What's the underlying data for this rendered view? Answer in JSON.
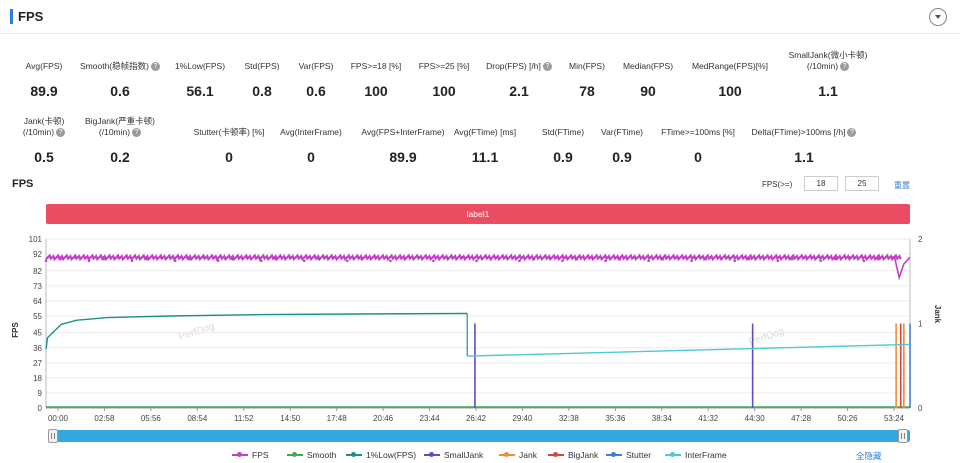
{
  "header": {
    "title": "FPS"
  },
  "metrics_row1": [
    {
      "label": "Avg(FPS)",
      "value": "89.9",
      "help": false
    },
    {
      "label": "Smooth(稳帧指数)",
      "value": "0.6",
      "help": true
    },
    {
      "label": "1%Low(FPS)",
      "value": "56.1",
      "help": false
    },
    {
      "label": "Std(FPS)",
      "value": "0.8",
      "help": false
    },
    {
      "label": "Var(FPS)",
      "value": "0.6",
      "help": false
    },
    {
      "label": "FPS>=18 [%]",
      "value": "100",
      "help": false
    },
    {
      "label": "FPS>=25 [%]",
      "value": "100",
      "help": false
    },
    {
      "label": "Drop(FPS) [/h]",
      "value": "2.1",
      "help": true
    },
    {
      "label": "Min(FPS)",
      "value": "78",
      "help": false
    },
    {
      "label": "Median(FPS)",
      "value": "90",
      "help": false
    },
    {
      "label": "MedRange(FPS)[%]",
      "value": "100",
      "help": false
    },
    {
      "label": "SmallJank(微小卡顿)",
      "label2": "(/10min)",
      "value": "1.1",
      "help": true
    }
  ],
  "metrics_row2": [
    {
      "label": "Jank(卡顿)",
      "label2": "(/10min)",
      "value": "0.5",
      "help": true
    },
    {
      "label": "BigJank(严重卡顿)",
      "label2": "(/10min)",
      "value": "0.2",
      "help": true
    },
    {
      "label": "Stutter(卡顿率) [%]",
      "value": "0",
      "help": false
    },
    {
      "label": "Avg(InterFrame)",
      "value": "0",
      "help": false
    },
    {
      "label": "Avg(FPS+InterFrame)",
      "value": "89.9",
      "help": false
    },
    {
      "label": "Avg(FTime) [ms]",
      "value": "11.1",
      "help": false
    },
    {
      "label": "Std(FTime)",
      "value": "0.9",
      "help": false
    },
    {
      "label": "Var(FTime)",
      "value": "0.9",
      "help": false
    },
    {
      "label": "FTime>=100ms [%]",
      "value": "0",
      "help": false
    },
    {
      "label": "Delta(FTime)>100ms [/h]",
      "value": "1.1",
      "help": true
    }
  ],
  "chart_section": {
    "title": "FPS",
    "fps_setting_label": "FPS(>=)",
    "fps_threshold_1": "18",
    "fps_threshold_2": "25",
    "reset_label": "重置",
    "band_label": "label1",
    "hide_all_label": "全隐藏"
  },
  "watermark": "PerfDog",
  "help_glyph": "?",
  "chart_data": {
    "type": "line",
    "xlabel": "",
    "ylabel": "FPS",
    "y2label": "Jank",
    "ylim": [
      0,
      101
    ],
    "y2lim": [
      0,
      2
    ],
    "yticks": [
      0,
      9,
      18,
      27,
      36,
      45,
      55,
      64,
      73,
      82,
      92,
      101
    ],
    "y2ticks": [
      0,
      1,
      2
    ],
    "x_minutes_max": 56,
    "xticks": [
      "00:00",
      "02:58",
      "05:56",
      "08:54",
      "11:52",
      "14:50",
      "17:48",
      "20:46",
      "23:44",
      "26:42",
      "29:40",
      "32:38",
      "35:36",
      "38:34",
      "41:32",
      "44:30",
      "47:28",
      "50:26",
      "53:24"
    ],
    "series": [
      {
        "name": "FPS",
        "color": "#c23fc6",
        "axis": "left",
        "values_summary": "steady ~90 throughout, dip to 78 near end",
        "x": [
          0,
          27,
          55,
          55.3,
          55.6,
          56
        ],
        "y": [
          90,
          90,
          90,
          78,
          86,
          90
        ]
      },
      {
        "name": "Smooth",
        "color": "#3daa4f",
        "axis": "left",
        "x": [
          0,
          56
        ],
        "y": [
          0.6,
          0.6
        ]
      },
      {
        "name": "1%Low(FPS)",
        "color": "#1f8f8a",
        "axis": "left",
        "x": [
          0,
          0.1,
          1,
          2,
          4,
          8,
          14,
          20,
          27,
          27.3
        ],
        "y": [
          35,
          42,
          50,
          52.5,
          54,
          55,
          55.8,
          56.2,
          56.5,
          56.5
        ]
      },
      {
        "name": "SmallJank",
        "color": "#5b4fc8",
        "axis": "right",
        "spikes": [
          {
            "x": 27.8,
            "y": 1
          },
          {
            "x": 45.8,
            "y": 1
          }
        ]
      },
      {
        "name": "Jank",
        "color": "#f28b30",
        "axis": "right",
        "spikes": [
          {
            "x": 55.1,
            "y": 1
          },
          {
            "x": 55.6,
            "y": 1
          }
        ]
      },
      {
        "name": "BigJank",
        "color": "#d9453d",
        "axis": "right",
        "spikes": [
          {
            "x": 55.4,
            "y": 1
          }
        ]
      },
      {
        "name": "Stutter",
        "color": "#3f7fd6",
        "axis": "right",
        "spikes": [
          {
            "x": 56,
            "y": 1
          }
        ]
      },
      {
        "name": "InterFrame",
        "color": "#4cc9d4",
        "axis": "left",
        "x": [
          27.3,
          56
        ],
        "y": [
          31,
          38
        ]
      }
    ]
  },
  "legend": [
    {
      "name": "FPS",
      "color": "#c23fc6"
    },
    {
      "name": "Smooth",
      "color": "#3daa4f"
    },
    {
      "name": "1%Low(FPS)",
      "color": "#1f8f8a"
    },
    {
      "name": "SmallJank",
      "color": "#5b4fc8"
    },
    {
      "name": "Jank",
      "color": "#f28b30"
    },
    {
      "name": "BigJank",
      "color": "#d9453d"
    },
    {
      "name": "Stutter",
      "color": "#3f7fd6"
    },
    {
      "name": "InterFrame",
      "color": "#4cc9d4"
    }
  ]
}
